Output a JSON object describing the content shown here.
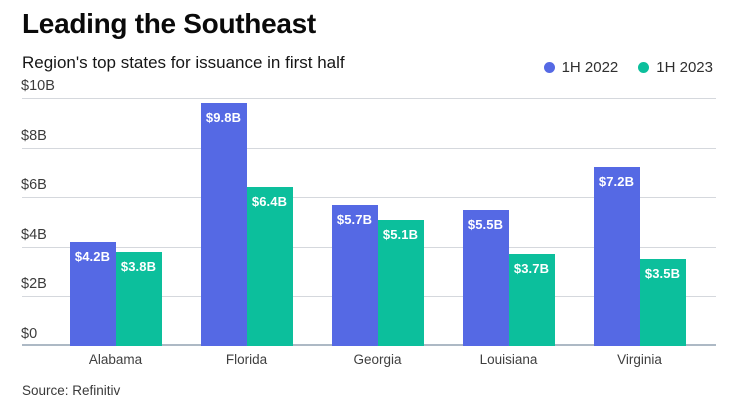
{
  "header": {
    "title": "Leading the Southeast",
    "subtitle": "Region's top states for issuance in first half"
  },
  "footer": {
    "source": "Source: Refinitiv"
  },
  "colors": {
    "series_2022": "#5569e4",
    "series_2023": "#0cbf9c",
    "grid": "#d5d8dd",
    "zero_line": "#adb9c5",
    "bar_label": "#ffffff"
  },
  "chart_data": {
    "type": "bar",
    "title": "Leading the Southeast",
    "subtitle": "Region's top states for issuance in first half",
    "categories": [
      "Alabama",
      "Florida",
      "Georgia",
      "Louisiana",
      "Virginia"
    ],
    "series": [
      {
        "name": "1H 2022",
        "color": "#5569e4",
        "values": [
          4.2,
          9.8,
          5.7,
          5.5,
          7.2
        ],
        "labels": [
          "$4.2B",
          "$9.8B",
          "$5.7B",
          "$5.5B",
          "$7.2B"
        ]
      },
      {
        "name": "1H 2023",
        "color": "#0cbf9c",
        "values": [
          3.8,
          6.4,
          5.1,
          3.7,
          3.5
        ],
        "labels": [
          "$3.8B",
          "$6.4B",
          "$5.1B",
          "$3.7B",
          "$3.5B"
        ]
      }
    ],
    "ylim": [
      0,
      10
    ],
    "yticks": [
      {
        "value": 10,
        "label": "$10B"
      },
      {
        "value": 8,
        "label": "$8B"
      },
      {
        "value": 6,
        "label": "$6B"
      },
      {
        "value": 4,
        "label": "$4B"
      },
      {
        "value": 2,
        "label": "$2B"
      },
      {
        "value": 0,
        "label": "$0"
      }
    ],
    "grid": true,
    "legend_position": "top-right",
    "source": "Source: Refinitiv"
  }
}
